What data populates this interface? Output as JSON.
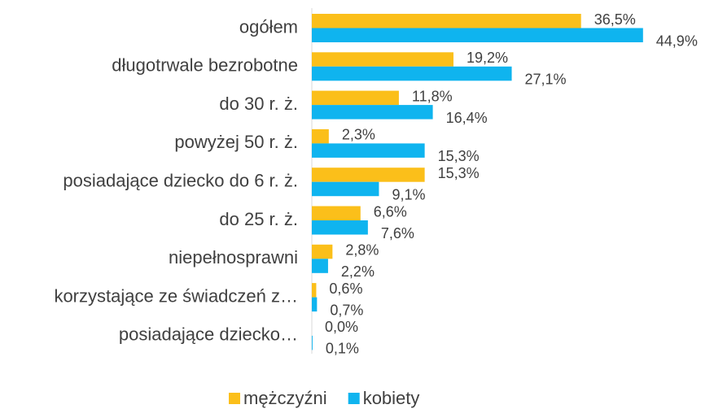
{
  "chart_data": {
    "type": "bar",
    "orientation": "horizontal",
    "categories": [
      "ogółem",
      "długotrwale bezrobotne",
      "do 30 r. ż.",
      "powyżej 50 r. ż.",
      "posiadające dziecko do 6 r. ż.",
      "do 25 r. ż.",
      "niepełnosprawni",
      "korzystające ze świadczeń z…",
      "posiadające dziecko…"
    ],
    "series": [
      {
        "name": "mężczyźni",
        "color": "#fbbf1a",
        "values": [
          36.5,
          19.2,
          11.8,
          2.3,
          15.3,
          6.6,
          2.8,
          0.6,
          0.0
        ],
        "value_labels": [
          "36,5%",
          "19,2%",
          "11,8%",
          "2,3%",
          "15,3%",
          "6,6%",
          "2,8%",
          "0,6%",
          "0,0%"
        ]
      },
      {
        "name": "kobiety",
        "color": "#0fb4ef",
        "values": [
          44.9,
          27.1,
          16.4,
          15.3,
          9.1,
          7.6,
          2.2,
          0.7,
          0.1
        ],
        "value_labels": [
          "44,9%",
          "27,1%",
          "16,4%",
          "15,3%",
          "9,1%",
          "7,6%",
          "2,2%",
          "0,7%",
          "0,1%"
        ]
      }
    ],
    "legend": "bottom"
  }
}
